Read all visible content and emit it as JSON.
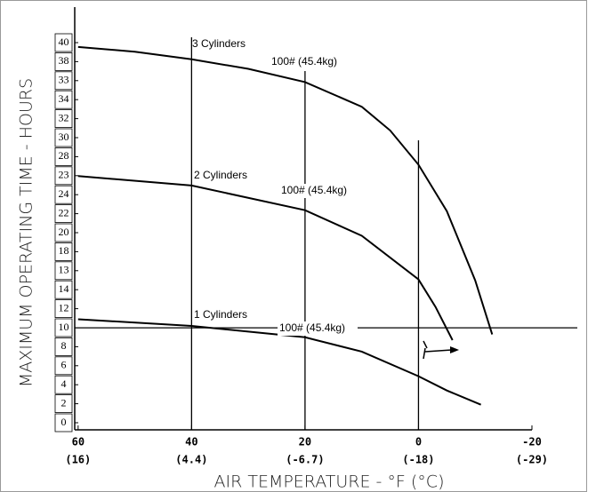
{
  "chart_data": {
    "type": "line",
    "x_label": "AIR TEMPERATURE - °F (°C)",
    "y_label": "MAXIMUM OPERATING TIME - HOURS",
    "xlim": [
      60.6,
      -28
    ],
    "ylim": [
      -0.75,
      43.8
    ],
    "xticks": [
      60,
      40,
      20,
      0,
      -20
    ],
    "x_secondary_labels": [
      "(16)",
      "(4.4)",
      "(-6.7)",
      "(-18)",
      "(-29)"
    ],
    "y_box_labels": [
      "0",
      "2",
      "4",
      "6",
      "8",
      "10",
      "12",
      "14",
      "13",
      "18",
      "20",
      "22",
      "24",
      "23",
      "28",
      "30",
      "32",
      "34",
      "33",
      "38",
      "40"
    ],
    "reference_x": [
      40,
      20,
      0
    ],
    "reference_y": 10,
    "series": [
      {
        "name": "3 Cylinders",
        "label": "100# (45.4kg)",
        "color": "#000",
        "x": [
          60,
          50,
          40,
          30,
          20,
          10,
          5,
          0,
          -5,
          -10,
          -13
        ],
        "values": [
          39.6,
          39.1,
          38.3,
          37.3,
          35.9,
          33.3,
          30.8,
          27.2,
          22.3,
          15,
          9.3
        ]
      },
      {
        "name": "2 Cylinders",
        "label": "100# (45.4kg)",
        "color": "#000",
        "x": [
          60,
          40,
          20,
          10,
          0,
          -3,
          -6
        ],
        "values": [
          26,
          25,
          22.4,
          19.7,
          15.1,
          12.2,
          8.7
        ]
      },
      {
        "name": "1 Cylinders",
        "label": "100# (45.4kg)",
        "color": "#000",
        "x": [
          60,
          40,
          20,
          10,
          0,
          -5,
          -11
        ],
        "values": [
          10.9,
          10.2,
          9,
          7.5,
          4.9,
          3.4,
          1.9
        ]
      }
    ]
  }
}
